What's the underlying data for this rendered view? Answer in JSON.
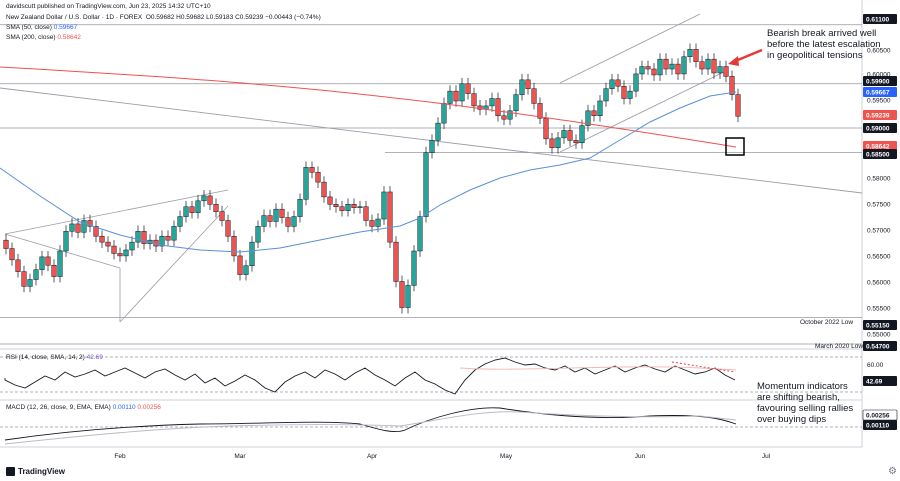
{
  "header": {
    "publisher": "davidscutt published on TradingView.com, Jun 23, 2025 14:32 UTC+10",
    "symbol": "New Zealand Dollar / U.S. Dollar · 1D · FOREX",
    "ohlc": "O0.59682  H0.59682  L0.59183  C0.59239  −0.00443 (−0.74%)",
    "sma50_label": "SMA (50, close)",
    "sma50_value": "0.59667",
    "sma200_label": "SMA (200, close)",
    "sma200_value": "0.58642"
  },
  "colors": {
    "bull": "#26a69a",
    "bear": "#ef5350",
    "sma50": "#5b8fd6",
    "sma200": "#ef5350",
    "trend": "#9b9ea8",
    "dark": "#131722",
    "red_label": "#ef5350",
    "blue_label": "#2962ff"
  },
  "annotations": {
    "bearish_break": [
      "Bearish break arrived well",
      "before the latest escalation",
      "in geopolitical tensions"
    ],
    "momentum": [
      "Momentum indicators",
      "are shifting bearish,",
      "favouring selling rallies",
      "over buying dips"
    ]
  },
  "level_labels": {
    "oct_2022": "October 2022 Low",
    "mar_2020": "March 2020 Low"
  },
  "brand": "TradingView",
  "chart_data": [
    {
      "type": "candlestick",
      "yaxis_ticks": [
        "0.60500",
        "0.60000",
        "0.59500",
        "0.59000",
        "0.58500",
        "0.58000",
        "0.57500",
        "0.57000",
        "0.56500",
        "0.56000",
        "0.55500",
        "0.55000"
      ],
      "price_tags": [
        {
          "text": "0.61100",
          "kind": "dark"
        },
        {
          "text": "0.59900",
          "kind": "dark"
        },
        {
          "text": "0.59667",
          "kind": "blue"
        },
        {
          "text": "0.59239",
          "kind": "red"
        },
        {
          "text": "0.59000",
          "kind": "dark"
        },
        {
          "text": "0.58642",
          "kind": "red"
        },
        {
          "text": "0.58500",
          "kind": "dark"
        },
        {
          "text": "0.55150",
          "kind": "dark"
        },
        {
          "text": "0.54700",
          "kind": "dark"
        }
      ],
      "xaxis_ticks": [
        "Feb",
        "Mar",
        "Apr",
        "May",
        "Jun",
        "Jul"
      ]
    },
    {
      "type": "line",
      "name": "RSI",
      "label": "RSI (14, close, SMA, 14, 2)",
      "value": "42.69",
      "tick_60": "60.00",
      "value_tag": "42.69"
    },
    {
      "type": "line",
      "name": "MACD",
      "label": "MACD (12, 26, close, 9, EMA, EMA)",
      "value_a": "0.00110",
      "value_b": "0.00256",
      "tag_a": "0.00110",
      "tag_b": "0.00256"
    }
  ]
}
